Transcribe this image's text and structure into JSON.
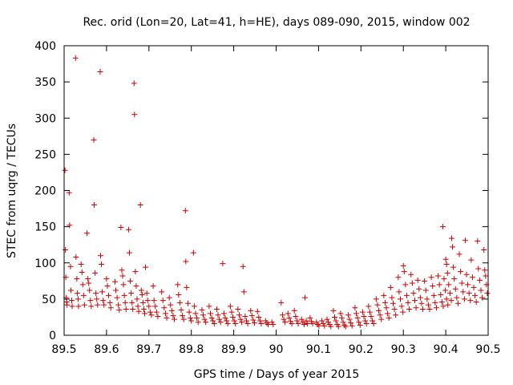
{
  "chart_data": {
    "type": "scatter",
    "title": "Rec. orid (Lon=20, Lat=41, h=HE), days 089-090, 2015, window 002",
    "xlabel": "GPS time / Days of year 2015",
    "ylabel": "STEC from uqrg / TECUs",
    "xlim": [
      89.5,
      90.5
    ],
    "ylim": [
      0,
      400
    ],
    "x_ticks": [
      89.5,
      89.6,
      89.7,
      89.8,
      89.9,
      90.0,
      90.1,
      90.2,
      90.3,
      90.4,
      90.5
    ],
    "x_tick_labels": [
      "89.5",
      "89.6",
      "89.7",
      "89.8",
      "89.9",
      "90",
      "90.1",
      "90.2",
      "90.3",
      "90.4",
      "90.5"
    ],
    "y_ticks": [
      0,
      50,
      100,
      150,
      200,
      250,
      300,
      350,
      400
    ],
    "y_tick_labels": [
      "0",
      "50",
      "100",
      "150",
      "200",
      "250",
      "300",
      "350",
      "400"
    ],
    "grid": false,
    "marker": "+",
    "marker_color": "#cc0000",
    "axis_color": "#000000",
    "points": [
      [
        89.502,
        228
      ],
      [
        89.503,
        118
      ],
      [
        89.504,
        80
      ],
      [
        89.505,
        52
      ],
      [
        89.506,
        46
      ],
      [
        89.507,
        42
      ],
      [
        89.512,
        197
      ],
      [
        89.513,
        152
      ],
      [
        89.515,
        95
      ],
      [
        89.516,
        62
      ],
      [
        89.518,
        48
      ],
      [
        89.519,
        40
      ],
      [
        89.527,
        383
      ],
      [
        89.528,
        108
      ],
      [
        89.53,
        78
      ],
      [
        89.531,
        58
      ],
      [
        89.533,
        50
      ],
      [
        89.534,
        40
      ],
      [
        89.54,
        98
      ],
      [
        89.542,
        87
      ],
      [
        89.544,
        70
      ],
      [
        89.546,
        55
      ],
      [
        89.548,
        42
      ],
      [
        89.554,
        141
      ],
      [
        89.556,
        78
      ],
      [
        89.558,
        72
      ],
      [
        89.56,
        62
      ],
      [
        89.562,
        48
      ],
      [
        89.564,
        40
      ],
      [
        89.57,
        270
      ],
      [
        89.571,
        180
      ],
      [
        89.573,
        86
      ],
      [
        89.575,
        58
      ],
      [
        89.577,
        50
      ],
      [
        89.579,
        42
      ],
      [
        89.585,
        364
      ],
      [
        89.586,
        110
      ],
      [
        89.588,
        98
      ],
      [
        89.59,
        60
      ],
      [
        89.592,
        48
      ],
      [
        89.594,
        42
      ],
      [
        89.6,
        78
      ],
      [
        89.602,
        68
      ],
      [
        89.605,
        55
      ],
      [
        89.608,
        45
      ],
      [
        89.61,
        38
      ],
      [
        89.62,
        74
      ],
      [
        89.622,
        62
      ],
      [
        89.625,
        52
      ],
      [
        89.628,
        42
      ],
      [
        89.63,
        35
      ],
      [
        89.634,
        149
      ],
      [
        89.636,
        90
      ],
      [
        89.638,
        82
      ],
      [
        89.64,
        70
      ],
      [
        89.642,
        55
      ],
      [
        89.644,
        45
      ],
      [
        89.646,
        36
      ],
      [
        89.652,
        146
      ],
      [
        89.654,
        114
      ],
      [
        89.656,
        75
      ],
      [
        89.658,
        58
      ],
      [
        89.66,
        45
      ],
      [
        89.662,
        36
      ],
      [
        89.665,
        348
      ],
      [
        89.666,
        305
      ],
      [
        89.668,
        88
      ],
      [
        89.67,
        68
      ],
      [
        89.672,
        50
      ],
      [
        89.674,
        40
      ],
      [
        89.676,
        33
      ],
      [
        89.68,
        180
      ],
      [
        89.682,
        62
      ],
      [
        89.684,
        56
      ],
      [
        89.686,
        45
      ],
      [
        89.688,
        36
      ],
      [
        89.69,
        30
      ],
      [
        89.692,
        94
      ],
      [
        89.695,
        58
      ],
      [
        89.697,
        48
      ],
      [
        89.7,
        40
      ],
      [
        89.703,
        32
      ],
      [
        89.706,
        28
      ],
      [
        89.71,
        68
      ],
      [
        89.712,
        48
      ],
      [
        89.715,
        40
      ],
      [
        89.718,
        32
      ],
      [
        89.721,
        26
      ],
      [
        89.73,
        60
      ],
      [
        89.733,
        48
      ],
      [
        89.736,
        38
      ],
      [
        89.739,
        30
      ],
      [
        89.742,
        24
      ],
      [
        89.748,
        52
      ],
      [
        89.751,
        42
      ],
      [
        89.754,
        34
      ],
      [
        89.757,
        27
      ],
      [
        89.76,
        22
      ],
      [
        89.768,
        70
      ],
      [
        89.77,
        56
      ],
      [
        89.773,
        45
      ],
      [
        89.776,
        35
      ],
      [
        89.779,
        27
      ],
      [
        89.782,
        22
      ],
      [
        89.786,
        172
      ],
      [
        89.787,
        102
      ],
      [
        89.789,
        66
      ],
      [
        89.792,
        44
      ],
      [
        89.795,
        32
      ],
      [
        89.798,
        24
      ],
      [
        89.8,
        20
      ],
      [
        89.805,
        114
      ],
      [
        89.807,
        40
      ],
      [
        89.81,
        30
      ],
      [
        89.813,
        24
      ],
      [
        89.816,
        18
      ],
      [
        89.825,
        35
      ],
      [
        89.828,
        28
      ],
      [
        89.831,
        22
      ],
      [
        89.834,
        18
      ],
      [
        89.842,
        40
      ],
      [
        89.845,
        30
      ],
      [
        89.848,
        24
      ],
      [
        89.851,
        20
      ],
      [
        89.854,
        16
      ],
      [
        89.86,
        36
      ],
      [
        89.863,
        28
      ],
      [
        89.866,
        22
      ],
      [
        89.869,
        18
      ],
      [
        89.874,
        99
      ],
      [
        89.877,
        30
      ],
      [
        89.88,
        24
      ],
      [
        89.883,
        20
      ],
      [
        89.886,
        16
      ],
      [
        89.892,
        40
      ],
      [
        89.895,
        32
      ],
      [
        89.898,
        25
      ],
      [
        89.901,
        20
      ],
      [
        89.904,
        16
      ],
      [
        89.91,
        36
      ],
      [
        89.913,
        28
      ],
      [
        89.916,
        22
      ],
      [
        89.919,
        18
      ],
      [
        89.922,
        95
      ],
      [
        89.924,
        60
      ],
      [
        89.927,
        26
      ],
      [
        89.93,
        20
      ],
      [
        89.933,
        16
      ],
      [
        89.94,
        34
      ],
      [
        89.943,
        27
      ],
      [
        89.946,
        21
      ],
      [
        89.949,
        17
      ],
      [
        89.956,
        33
      ],
      [
        89.959,
        25
      ],
      [
        89.962,
        20
      ],
      [
        89.965,
        16
      ],
      [
        89.975,
        20
      ],
      [
        89.978,
        17
      ],
      [
        89.981,
        15
      ],
      [
        89.99,
        18
      ],
      [
        89.993,
        15
      ],
      [
        90.012,
        45
      ],
      [
        90.015,
        28
      ],
      [
        90.018,
        22
      ],
      [
        90.021,
        18
      ],
      [
        90.028,
        30
      ],
      [
        90.031,
        24
      ],
      [
        90.034,
        19
      ],
      [
        90.037,
        16
      ],
      [
        90.043,
        34
      ],
      [
        90.046,
        26
      ],
      [
        90.049,
        20
      ],
      [
        90.052,
        16
      ],
      [
        90.06,
        22
      ],
      [
        90.063,
        18
      ],
      [
        90.066,
        15
      ],
      [
        90.068,
        52
      ],
      [
        90.071,
        20
      ],
      [
        90.074,
        16
      ],
      [
        90.08,
        24
      ],
      [
        90.083,
        19
      ],
      [
        90.086,
        16
      ],
      [
        90.095,
        18
      ],
      [
        90.098,
        15
      ],
      [
        90.101,
        13
      ],
      [
        90.108,
        20
      ],
      [
        90.111,
        16
      ],
      [
        90.114,
        13
      ],
      [
        90.12,
        22
      ],
      [
        90.123,
        18
      ],
      [
        90.126,
        15
      ],
      [
        90.129,
        12
      ],
      [
        90.135,
        34
      ],
      [
        90.138,
        25
      ],
      [
        90.141,
        20
      ],
      [
        90.144,
        15
      ],
      [
        90.147,
        12
      ],
      [
        90.152,
        30
      ],
      [
        90.155,
        24
      ],
      [
        90.158,
        18
      ],
      [
        90.161,
        14
      ],
      [
        90.164,
        12
      ],
      [
        90.17,
        28
      ],
      [
        90.173,
        22
      ],
      [
        90.176,
        17
      ],
      [
        90.179,
        13
      ],
      [
        90.186,
        38
      ],
      [
        90.189,
        30
      ],
      [
        90.192,
        24
      ],
      [
        90.195,
        18
      ],
      [
        90.198,
        14
      ],
      [
        90.204,
        32
      ],
      [
        90.207,
        26
      ],
      [
        90.21,
        20
      ],
      [
        90.213,
        16
      ],
      [
        90.218,
        40
      ],
      [
        90.221,
        32
      ],
      [
        90.224,
        26
      ],
      [
        90.227,
        20
      ],
      [
        90.23,
        16
      ],
      [
        90.236,
        50
      ],
      [
        90.239,
        42
      ],
      [
        90.242,
        34
      ],
      [
        90.245,
        28
      ],
      [
        90.248,
        22
      ],
      [
        90.254,
        55
      ],
      [
        90.257,
        45
      ],
      [
        90.26,
        38
      ],
      [
        90.263,
        30
      ],
      [
        90.266,
        24
      ],
      [
        90.27,
        66
      ],
      [
        90.273,
        52
      ],
      [
        90.276,
        44
      ],
      [
        90.279,
        36
      ],
      [
        90.282,
        28
      ],
      [
        90.288,
        80
      ],
      [
        90.29,
        60
      ],
      [
        90.293,
        50
      ],
      [
        90.296,
        40
      ],
      [
        90.299,
        32
      ],
      [
        90.3,
        96
      ],
      [
        90.302,
        88
      ],
      [
        90.305,
        70
      ],
      [
        90.308,
        55
      ],
      [
        90.311,
        45
      ],
      [
        90.314,
        36
      ],
      [
        90.318,
        84
      ],
      [
        90.321,
        72
      ],
      [
        90.324,
        58
      ],
      [
        90.327,
        48
      ],
      [
        90.33,
        38
      ],
      [
        90.334,
        76
      ],
      [
        90.337,
        64
      ],
      [
        90.34,
        52
      ],
      [
        90.343,
        44
      ],
      [
        90.346,
        36
      ],
      [
        90.35,
        75
      ],
      [
        90.353,
        62
      ],
      [
        90.356,
        50
      ],
      [
        90.359,
        42
      ],
      [
        90.362,
        36
      ],
      [
        90.366,
        80
      ],
      [
        90.369,
        68
      ],
      [
        90.372,
        55
      ],
      [
        90.375,
        45
      ],
      [
        90.378,
        38
      ],
      [
        90.382,
        82
      ],
      [
        90.385,
        70
      ],
      [
        90.388,
        56
      ],
      [
        90.391,
        46
      ],
      [
        90.394,
        40
      ],
      [
        90.393,
        150
      ],
      [
        90.396,
        78
      ],
      [
        90.399,
        62
      ],
      [
        90.402,
        50
      ],
      [
        90.405,
        42
      ],
      [
        90.4,
        105
      ],
      [
        90.402,
        98
      ],
      [
        90.404,
        86
      ],
      [
        90.407,
        70
      ],
      [
        90.41,
        58
      ],
      [
        90.413,
        48
      ],
      [
        90.414,
        134
      ],
      [
        90.416,
        122
      ],
      [
        90.418,
        94
      ],
      [
        90.42,
        78
      ],
      [
        90.423,
        64
      ],
      [
        90.426,
        52
      ],
      [
        90.429,
        44
      ],
      [
        90.432,
        112
      ],
      [
        90.435,
        88
      ],
      [
        90.438,
        72
      ],
      [
        90.441,
        60
      ],
      [
        90.444,
        50
      ],
      [
        90.446,
        131
      ],
      [
        90.449,
        84
      ],
      [
        90.452,
        70
      ],
      [
        90.455,
        58
      ],
      [
        90.458,
        48
      ],
      [
        90.46,
        104
      ],
      [
        90.463,
        80
      ],
      [
        90.466,
        66
      ],
      [
        90.469,
        55
      ],
      [
        90.472,
        46
      ],
      [
        90.475,
        130
      ],
      [
        90.477,
        92
      ],
      [
        90.48,
        76
      ],
      [
        90.483,
        62
      ],
      [
        90.486,
        52
      ],
      [
        90.49,
        118
      ],
      [
        90.492,
        90
      ],
      [
        90.494,
        82
      ],
      [
        90.496,
        70
      ],
      [
        90.498,
        58
      ]
    ]
  }
}
